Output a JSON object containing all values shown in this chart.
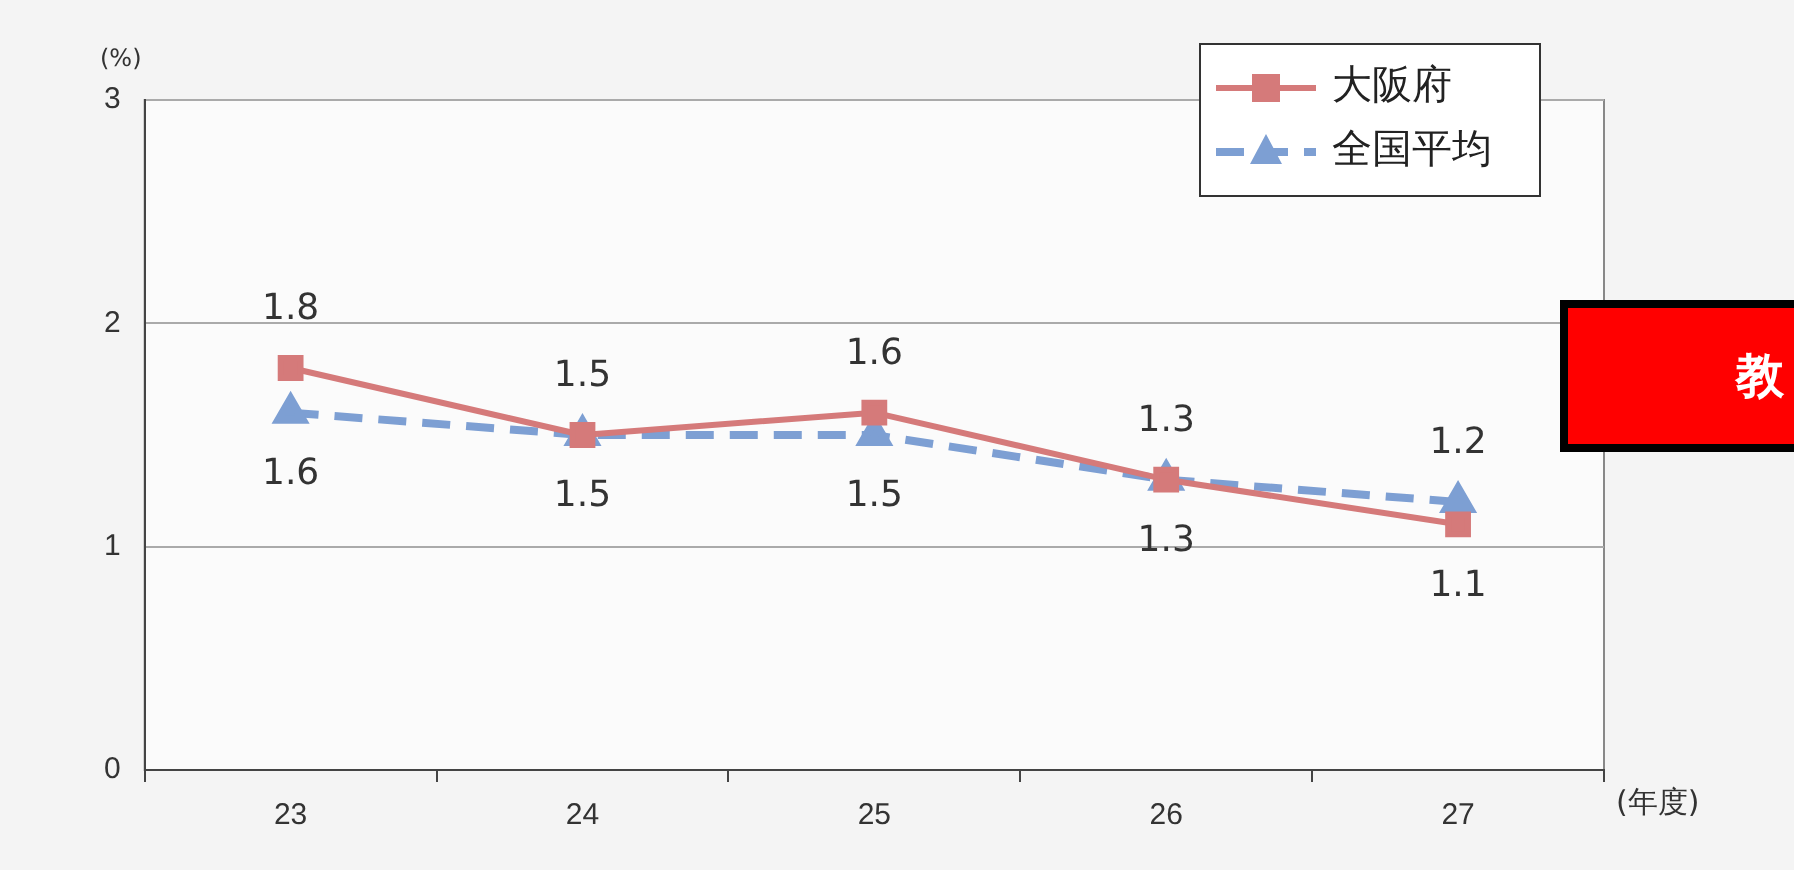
{
  "chart_data": {
    "type": "line",
    "ylabel": "(%)",
    "xlabel": "(年度)",
    "categories": [
      "23",
      "24",
      "25",
      "26",
      "27"
    ],
    "series": [
      {
        "name": "大阪府",
        "color": "#d57a7a",
        "values": [
          1.8,
          1.5,
          1.6,
          1.3,
          1.1
        ],
        "marker": "square",
        "line_style": "solid"
      },
      {
        "name": "全国平均",
        "color": "#7d9fd3",
        "values": [
          1.6,
          1.5,
          1.5,
          1.3,
          1.2
        ],
        "marker": "triangle",
        "line_style": "dashed"
      }
    ],
    "ylim": [
      0,
      3
    ],
    "yticks": [
      0,
      1,
      2,
      3
    ],
    "grid": "y",
    "legend": "top right",
    "data_labels": true,
    "annotations": [
      "教"
    ]
  }
}
